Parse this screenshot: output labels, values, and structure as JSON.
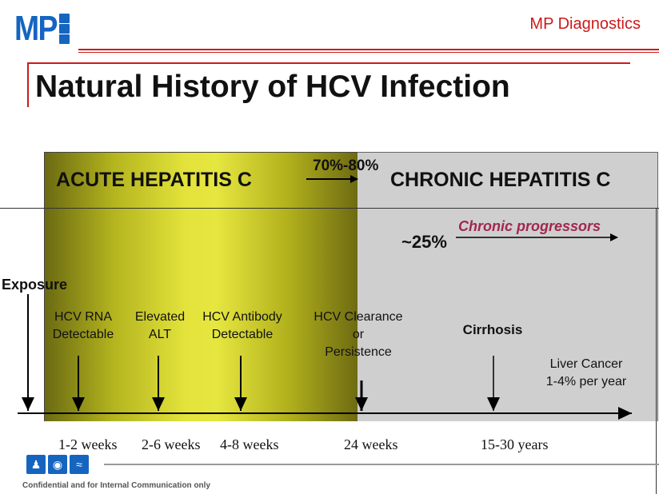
{
  "header": {
    "logo_text": "MP",
    "brand": "MP Diagnostics"
  },
  "title": "Natural History of HCV Infection",
  "phases": {
    "acute": "ACUTE HEPATITIS C",
    "chronic": "CHRONIC HEPATITIS C",
    "chronic_rate": "70%-80%",
    "progressor_rate": "~25%",
    "progressors": "Chronic progressors"
  },
  "events": {
    "exposure": "Exposure",
    "rna": [
      "HCV RNA",
      "Detectable"
    ],
    "alt": [
      "Elevated",
      "ALT"
    ],
    "antibody": [
      "HCV Antibody",
      "Detectable"
    ],
    "clearance": [
      "HCV Clearance",
      "or",
      "Persistence"
    ],
    "cirrhosis": "Cirrhosis",
    "cancer": [
      "Liver Cancer",
      "1-4% per year"
    ]
  },
  "timeline": [
    "1-2 weeks",
    "2-6 weeks",
    "4-8 weeks",
    "24 weeks",
    "15-30 years"
  ],
  "footer": {
    "confidential": "Confidential and for Internal Communication only",
    "icons": [
      "people-icon",
      "globe-icon",
      "dna-icon"
    ]
  },
  "colors": {
    "brand_red": "#cc1a1a",
    "brand_blue": "#1565c0",
    "acute_yellow": "#e3e33c",
    "chronic_gray": "#cfcfcf",
    "progressor_text": "#a0284e"
  }
}
